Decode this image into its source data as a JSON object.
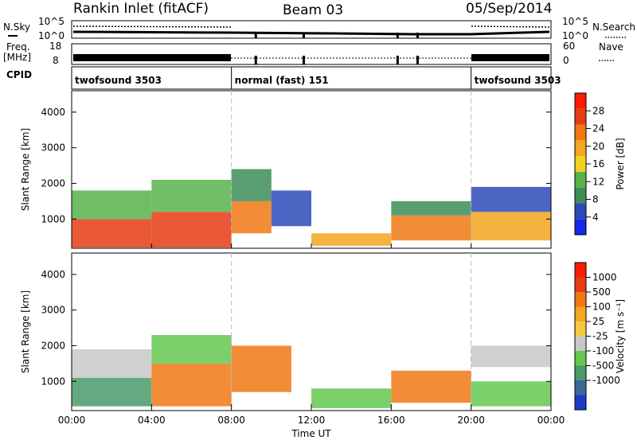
{
  "header": {
    "station": "Rankin Inlet (fitACF)",
    "beam": "Beam 03",
    "date": "05/Sep/2014"
  },
  "aux": {
    "nsky_label": "N.Sky",
    "nsearch_label": "N.Search",
    "freq_label_1": "Freq.",
    "freq_label_2": "[MHz]",
    "nave_label": "Nave",
    "cpid_label": "CPID",
    "nsky_ticks": [
      "10^5",
      "10^0"
    ],
    "nsearch_ticks": [
      "10^5",
      "10^0"
    ],
    "freq_ticks": [
      "18",
      "8"
    ],
    "nave_ticks": [
      "60",
      "0"
    ],
    "cpid_segments": [
      {
        "label": "twofsound 3503",
        "start": 0,
        "end": 8
      },
      {
        "label": "normal (fast) 151",
        "start": 8,
        "end": 20
      },
      {
        "label": "twofsound 3503",
        "start": 20,
        "end": 24
      }
    ],
    "cpid_markers": [
      9.2,
      11.6,
      16.3,
      17.3
    ]
  },
  "chart_data": [
    {
      "type": "heatmap",
      "quantity": "Power",
      "ylabel": "Slant Range [km]",
      "ylim": [
        180,
        4600
      ],
      "yticks": [
        "1000",
        "2000",
        "3000",
        "4000"
      ],
      "ytick_values": [
        1000,
        2000,
        3000,
        4000
      ],
      "colorbar_label": "Power [dB]",
      "colorbar_ticks": [
        "4",
        "8",
        "12",
        "16",
        "20",
        "24",
        "28"
      ],
      "colorbar_tick_values": [
        4,
        8,
        12,
        16,
        20,
        24,
        28
      ],
      "colorbar_range": [
        0,
        32
      ],
      "colors": [
        "#1428e6",
        "#2d4ab8",
        "#3c8c5a",
        "#57b34a",
        "#f0d21e",
        "#f5a51e",
        "#f07814",
        "#e63c14",
        "#ff1a00"
      ],
      "bands": [
        {
          "t0": 0.0,
          "t1": 4.0,
          "r0": 200,
          "r1": 1000,
          "level": 26
        },
        {
          "t0": 0.0,
          "t1": 4.0,
          "r0": 1000,
          "r1": 1800,
          "level": 12
        },
        {
          "t0": 4.0,
          "t1": 8.0,
          "r0": 200,
          "r1": 1200,
          "level": 28
        },
        {
          "t0": 4.0,
          "t1": 8.0,
          "r0": 1200,
          "r1": 2100,
          "level": 14
        },
        {
          "t0": 8.0,
          "t1": 10.0,
          "r0": 600,
          "r1": 1500,
          "level": 22
        },
        {
          "t0": 8.0,
          "t1": 10.0,
          "r0": 1500,
          "r1": 2400,
          "level": 8
        },
        {
          "t0": 10.0,
          "t1": 12.0,
          "r0": 800,
          "r1": 1800,
          "level": 6
        },
        {
          "t0": 12.0,
          "t1": 16.0,
          "r0": 250,
          "r1": 600,
          "level": 20
        },
        {
          "t0": 16.0,
          "t1": 20.0,
          "r0": 400,
          "r1": 1100,
          "level": 22
        },
        {
          "t0": 16.0,
          "t1": 20.0,
          "r0": 1100,
          "r1": 1500,
          "level": 10
        },
        {
          "t0": 20.0,
          "t1": 24.0,
          "r0": 400,
          "r1": 1200,
          "level": 18
        },
        {
          "t0": 20.0,
          "t1": 24.0,
          "r0": 1200,
          "r1": 1900,
          "level": 6
        }
      ]
    },
    {
      "type": "heatmap",
      "quantity": "Velocity",
      "xlabel": "Time UT",
      "xticks": [
        "00:00",
        "04:00",
        "08:00",
        "12:00",
        "16:00",
        "20:00",
        "00:00"
      ],
      "xtick_values": [
        0,
        4,
        8,
        12,
        16,
        20,
        24
      ],
      "xlim": [
        0,
        24
      ],
      "ylabel": "Slant Range [km]",
      "ylim": [
        180,
        4600
      ],
      "yticks": [
        "1000",
        "2000",
        "3000",
        "4000"
      ],
      "ytick_values": [
        1000,
        2000,
        3000,
        4000
      ],
      "colorbar_label": "Velocity [m s⁻¹]",
      "colorbar_ticks": [
        "1000",
        "500",
        "100",
        "25",
        "-25",
        "-100",
        "-500",
        "-1000"
      ],
      "colors": [
        "#1e3cc8",
        "#3a6a9a",
        "#4a9a6a",
        "#64c850",
        "#c8c8c8",
        "#f5c840",
        "#f5a51e",
        "#f07814",
        "#e63c14",
        "#ff1a00"
      ],
      "bands": [
        {
          "t0": 0.0,
          "t1": 4.0,
          "r0": 300,
          "r1": 1100,
          "cls": 2
        },
        {
          "t0": 0.0,
          "t1": 4.0,
          "r0": 1100,
          "r1": 1900,
          "cls": 4
        },
        {
          "t0": 4.0,
          "t1": 8.0,
          "r0": 300,
          "r1": 1500,
          "cls": 7
        },
        {
          "t0": 4.0,
          "t1": 8.0,
          "r0": 1500,
          "r1": 2300,
          "cls": 3
        },
        {
          "t0": 8.0,
          "t1": 11.0,
          "r0": 700,
          "r1": 2000,
          "cls": 7
        },
        {
          "t0": 12.0,
          "t1": 16.0,
          "r0": 250,
          "r1": 800,
          "cls": 3
        },
        {
          "t0": 16.0,
          "t1": 20.0,
          "r0": 400,
          "r1": 1300,
          "cls": 7
        },
        {
          "t0": 20.0,
          "t1": 24.0,
          "r0": 300,
          "r1": 1000,
          "cls": 3
        },
        {
          "t0": 20.0,
          "t1": 24.0,
          "r0": 1400,
          "r1": 2000,
          "cls": 4
        }
      ]
    }
  ]
}
